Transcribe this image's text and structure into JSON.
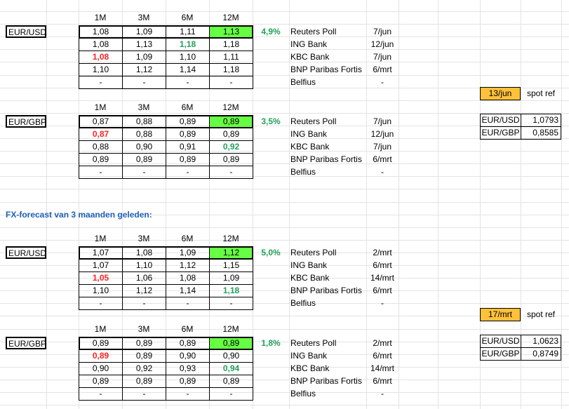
{
  "heading": "FX-forecast van 3 maanden geleden:",
  "current": {
    "blocks": [
      {
        "label": "EUR/USD",
        "periods": [
          "1M",
          "3M",
          "6M",
          "12M"
        ],
        "pct": "4,9%",
        "rows": [
          {
            "vals": [
              "1,08",
              "1,09",
              "1,11",
              "1,13"
            ],
            "src": "Reuters Poll",
            "date": "7/jun"
          },
          {
            "vals": [
              "1,08",
              "1,13",
              "1,18",
              "1,18"
            ],
            "src": "ING Bank",
            "date": "12/jun"
          },
          {
            "vals": [
              "1,08",
              "1,09",
              "1,10",
              "1,11"
            ],
            "src": "KBC Bank",
            "date": "7/jun"
          },
          {
            "vals": [
              "1,10",
              "1,12",
              "1,14",
              "1,18"
            ],
            "src": "BNP Paribas Fortis",
            "date": "6/mrt"
          },
          {
            "vals": [
              "-",
              "-",
              "-",
              "-"
            ],
            "src": "Belfius",
            "date": "-"
          }
        ]
      },
      {
        "label": "EUR/GBP",
        "periods": [
          "1M",
          "3M",
          "6M",
          "12M"
        ],
        "pct": "3,5%",
        "rows": [
          {
            "vals": [
              "0,87",
              "0,88",
              "0,89",
              "0,89"
            ],
            "src": "Reuters Poll",
            "date": "7/jun"
          },
          {
            "vals": [
              "0,87",
              "0,88",
              "0,89",
              "0,89"
            ],
            "src": "ING Bank",
            "date": "12/jun"
          },
          {
            "vals": [
              "0,88",
              "0,90",
              "0,91",
              "0,92"
            ],
            "src": "KBC Bank",
            "date": "7/jun"
          },
          {
            "vals": [
              "0,89",
              "0,89",
              "0,89",
              "0,89"
            ],
            "src": "BNP Paribas Fortis",
            "date": "6/mrt"
          },
          {
            "vals": [
              "-",
              "-",
              "-",
              "-"
            ],
            "src": "Belfius",
            "date": "-"
          }
        ]
      }
    ],
    "spot": {
      "date": "13/jun",
      "label": "spot ref",
      "rows": [
        {
          "pair": "EUR/USD",
          "value": "1,0793"
        },
        {
          "pair": "EUR/GBP",
          "value": "0,8585"
        }
      ]
    }
  },
  "past": {
    "blocks": [
      {
        "label": "EUR/USD",
        "periods": [
          "1M",
          "3M",
          "6M",
          "12M"
        ],
        "pct": "5,0%",
        "rows": [
          {
            "vals": [
              "1,07",
              "1,08",
              "1,09",
              "1,12"
            ],
            "src": "Reuters Poll",
            "date": "2/mrt"
          },
          {
            "vals": [
              "1,07",
              "1,10",
              "1,12",
              "1,15"
            ],
            "src": "ING Bank",
            "date": "6/mrt"
          },
          {
            "vals": [
              "1,05",
              "1,06",
              "1,08",
              "1,09"
            ],
            "src": "KBC Bank",
            "date": "14/mrt"
          },
          {
            "vals": [
              "1,10",
              "1,12",
              "1,14",
              "1,18"
            ],
            "src": "BNP Paribas Fortis",
            "date": "6/mrt"
          },
          {
            "vals": [
              "-",
              "-",
              "-",
              "-"
            ],
            "src": "Belfius",
            "date": "-"
          }
        ]
      },
      {
        "label": "EUR/GBP",
        "periods": [
          "1M",
          "3M",
          "6M",
          "12M"
        ],
        "pct": "1,8%",
        "rows": [
          {
            "vals": [
              "0,89",
              "0,89",
              "0,89",
              "0,89"
            ],
            "src": "Reuters Poll",
            "date": "2/mrt"
          },
          {
            "vals": [
              "0,89",
              "0,89",
              "0,90",
              "0,90"
            ],
            "src": "ING Bank",
            "date": "6/mrt"
          },
          {
            "vals": [
              "0,90",
              "0,92",
              "0,93",
              "0,94"
            ],
            "src": "KBC Bank",
            "date": "14/mrt"
          },
          {
            "vals": [
              "0,89",
              "0,89",
              "0,89",
              "0,89"
            ],
            "src": "BNP Paribas Fortis",
            "date": "6/mrt"
          },
          {
            "vals": [
              "-",
              "-",
              "-",
              "-"
            ],
            "src": "Belfius",
            "date": "-"
          }
        ]
      }
    ],
    "spot": {
      "date": "17/mrt",
      "label": "spot ref",
      "rows": [
        {
          "pair": "EUR/USD",
          "value": "1,0623"
        },
        {
          "pair": "EUR/GBP",
          "value": "0,8749"
        }
      ]
    }
  },
  "colors": {
    "highlight": "#66ff44",
    "spot_date": "#ffc13a",
    "red_text": "#ff2222",
    "green_text": "#21a05a",
    "heading": "#1f5fb4"
  }
}
